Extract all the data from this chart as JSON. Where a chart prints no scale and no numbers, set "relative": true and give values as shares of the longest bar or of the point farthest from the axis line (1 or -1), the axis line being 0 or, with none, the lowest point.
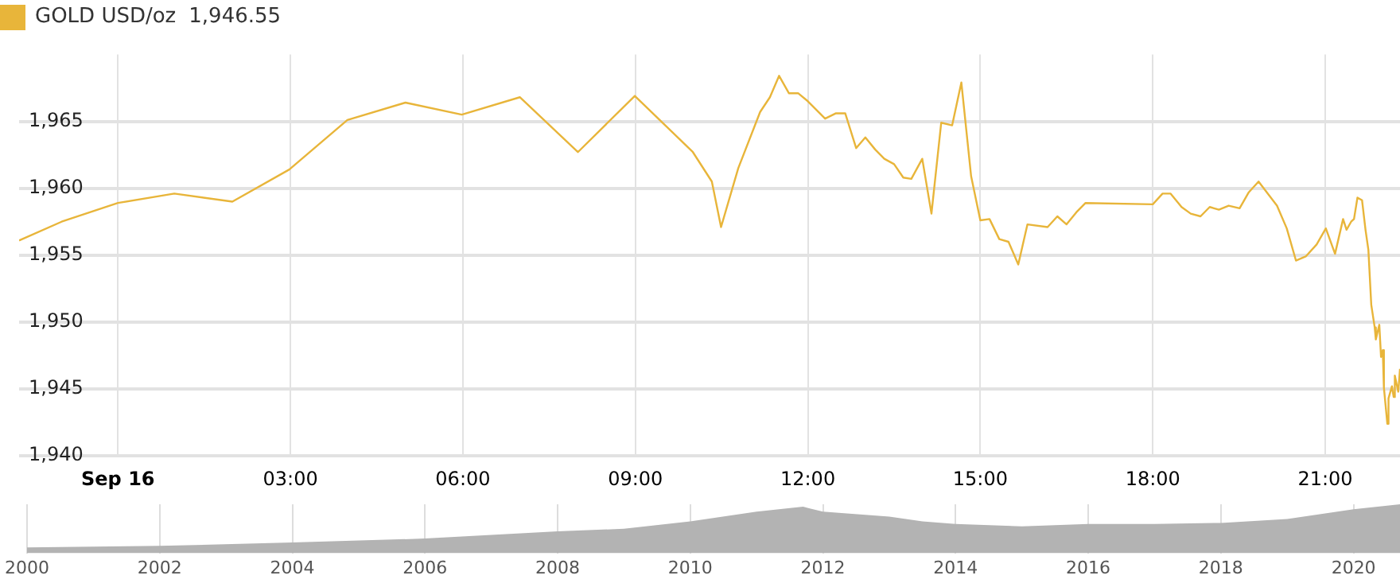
{
  "chart_data": [
    {
      "type": "line",
      "legend": "top left",
      "annotations": [
        "1,946.55"
      ],
      "grid": true,
      "marker": "none",
      "xlim": [
        -1.72,
        22.3
      ],
      "xticks": [
        {
          "value": 0,
          "label": "Sep 16"
        },
        {
          "value": 3,
          "label": "03:00"
        },
        {
          "value": 6,
          "label": "06:00"
        },
        {
          "value": 9,
          "label": "09:00"
        },
        {
          "value": 12,
          "label": "12:00"
        },
        {
          "value": 15,
          "label": "15:00"
        },
        {
          "value": 18,
          "label": "18:00"
        },
        {
          "value": 21,
          "label": "21:00"
        }
      ],
      "ylim": [
        1940,
        1970
      ],
      "yticks": [
        {
          "value": 1940,
          "label": "1,940"
        },
        {
          "value": 1945,
          "label": "1,945"
        },
        {
          "value": 1950,
          "label": "1,950"
        },
        {
          "value": 1955,
          "label": "1,955"
        },
        {
          "value": 1960,
          "label": "1,960"
        },
        {
          "value": 1965,
          "label": "1,965"
        }
      ],
      "series": [
        {
          "name": "GOLD USD/oz",
          "color": "#e8b53a",
          "x": [
            -1.72,
            -0.98,
            0,
            0.98,
            1.99,
            2.98,
            3.99,
            5.0,
            5.98,
            6.99,
            8.0,
            8.99,
            10.0,
            10.33,
            10.49,
            10.79,
            11.17,
            11.34,
            11.5,
            11.67,
            11.83,
            12.0,
            12.3,
            12.49,
            12.65,
            12.84,
            13.0,
            13.17,
            13.33,
            13.5,
            13.66,
            13.8,
            13.99,
            14.15,
            14.32,
            14.51,
            14.67,
            14.84,
            15.0,
            15.16,
            15.33,
            15.49,
            15.66,
            15.82,
            16.17,
            16.34,
            16.5,
            16.67,
            16.83,
            18.0,
            18.17,
            18.31,
            18.5,
            18.66,
            18.83,
            18.99,
            19.15,
            19.32,
            19.51,
            19.67,
            19.84,
            20.16,
            20.33,
            20.49,
            20.66,
            20.85,
            21.01,
            21.17,
            21.31,
            21.37,
            21.45,
            21.5,
            21.56,
            21.64,
            21.7,
            21.75,
            21.8,
            21.86,
            21.88,
            21.94,
            21.97,
            22.0,
            22.02,
            22.08,
            22.1,
            22.16,
            22.19,
            22.21,
            22.27,
            22.3
          ],
          "values": [
            1956.1,
            1957.5,
            1958.9,
            1959.6,
            1959.0,
            1961.4,
            1965.1,
            1966.4,
            1965.5,
            1966.8,
            1962.7,
            1966.9,
            1962.7,
            1960.5,
            1957.1,
            1961.5,
            1965.7,
            1966.8,
            1968.4,
            1967.1,
            1967.1,
            1966.5,
            1965.2,
            1965.6,
            1965.6,
            1963.0,
            1963.8,
            1962.9,
            1962.2,
            1961.8,
            1960.8,
            1960.7,
            1962.2,
            1958.1,
            1964.9,
            1964.7,
            1967.9,
            1960.9,
            1957.6,
            1957.7,
            1956.2,
            1956.0,
            1954.3,
            1957.3,
            1957.1,
            1957.9,
            1957.3,
            1958.2,
            1958.9,
            1958.8,
            1959.6,
            1959.6,
            1958.6,
            1958.1,
            1957.9,
            1958.6,
            1958.4,
            1958.7,
            1958.5,
            1959.7,
            1960.5,
            1958.7,
            1957.0,
            1954.6,
            1954.9,
            1955.8,
            1957.0,
            1955.1,
            1957.7,
            1956.9,
            1957.5,
            1957.7,
            1959.3,
            1959.1,
            1956.9,
            1955.4,
            1951.3,
            1949.6,
            1948.7,
            1949.8,
            1947.4,
            1947.9,
            1945.1,
            1942.4,
            1944.3,
            1945.2,
            1944.4,
            1946.0,
            1944.8,
            1946.5
          ]
        }
      ]
    },
    {
      "type": "area",
      "relative": true,
      "grid": "x",
      "color": "#b3b3b3",
      "xlim": [
        2000,
        2020.7
      ],
      "xticks": [
        2000,
        2002,
        2004,
        2006,
        2008,
        2010,
        2012,
        2014,
        2016,
        2018,
        2020
      ],
      "x": [
        2000,
        2002,
        2004,
        2006,
        2008,
        2009,
        2010,
        2011,
        2011.7,
        2012,
        2013,
        2013.5,
        2014,
        2015,
        2016,
        2017,
        2018,
        2019,
        2020,
        2020.7
      ],
      "values": [
        0.12,
        0.15,
        0.22,
        0.3,
        0.45,
        0.5,
        0.65,
        0.85,
        0.95,
        0.85,
        0.75,
        0.65,
        0.6,
        0.55,
        0.6,
        0.6,
        0.62,
        0.7,
        0.9,
        1.0
      ]
    }
  ]
}
